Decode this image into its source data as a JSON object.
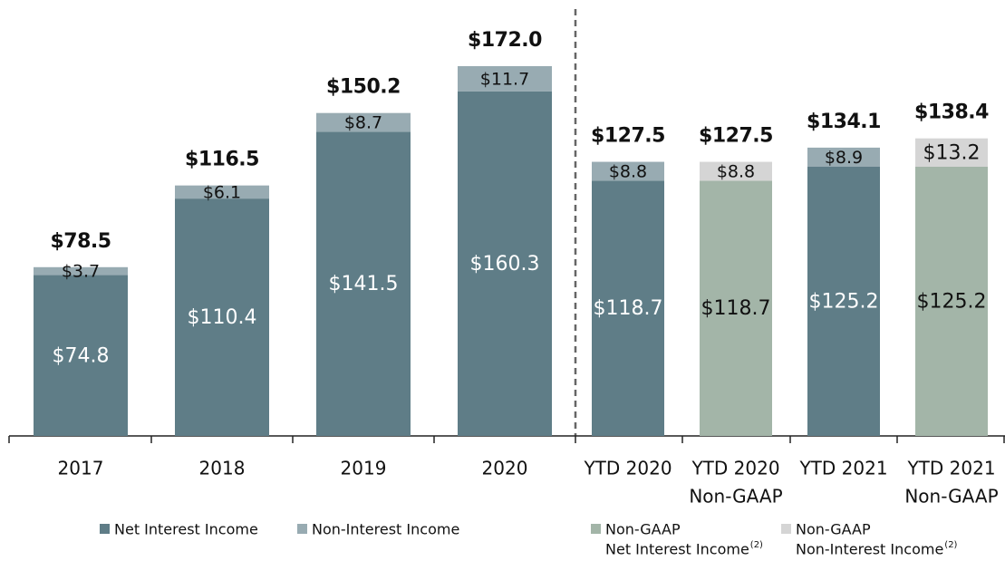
{
  "chart_data": {
    "type": "stacked_bar",
    "categories": [
      [
        "2017"
      ],
      [
        "2018"
      ],
      [
        "2019"
      ],
      [
        "2020"
      ],
      [
        "YTD 2020"
      ],
      [
        "YTD 2020",
        "Non-GAAP"
      ],
      [
        "YTD 2021"
      ],
      [
        "YTD 2021",
        "Non-GAAP"
      ]
    ],
    "ylim": [
      0,
      180
    ],
    "series": [
      {
        "name": [
          "Net Interest Income"
        ],
        "color": "#5f7d87",
        "label_color": "#ffffff",
        "values": [
          74.8,
          110.4,
          141.5,
          160.3,
          118.7,
          null,
          125.2,
          null
        ],
        "value_labels": [
          "$74.8",
          "$110.4",
          "$141.5",
          "$160.3",
          "$118.7",
          null,
          "$125.2",
          null
        ]
      },
      {
        "name": [
          "Non-Interest Income"
        ],
        "color": "#98abb2",
        "label_color": "#111111",
        "values": [
          3.7,
          6.1,
          8.7,
          11.7,
          8.8,
          null,
          8.9,
          null
        ],
        "value_labels": [
          "$3.7",
          "$6.1",
          "$8.7",
          "$11.7",
          "$8.8",
          null,
          "$8.9",
          null
        ]
      },
      {
        "name": [
          "Non-GAAP",
          "Net Interest Income"
        ],
        "footnote": "(2)",
        "color": "#a3b5a8",
        "label_color": "#111111",
        "values": [
          null,
          null,
          null,
          null,
          null,
          118.7,
          null,
          125.2
        ],
        "value_labels": [
          null,
          null,
          null,
          null,
          null,
          "$118.7",
          null,
          "$125.2"
        ]
      },
      {
        "name": [
          "Non-GAAP",
          "Non-Interest Income"
        ],
        "footnote": "(2)",
        "color": "#d5d5d5",
        "label_color": "#111111",
        "values": [
          null,
          null,
          null,
          null,
          null,
          8.8,
          null,
          13.2
        ],
        "value_labels": [
          null,
          null,
          null,
          null,
          null,
          "$8.8",
          null,
          "$13.2"
        ]
      }
    ],
    "totals": [
      78.5,
      116.5,
      150.2,
      172.0,
      127.5,
      127.5,
      134.1,
      138.4
    ],
    "total_labels": [
      "$78.5",
      "$116.5",
      "$150.2",
      "$172.0",
      "$127.5",
      "$127.5",
      "$134.1",
      "$138.4"
    ]
  }
}
